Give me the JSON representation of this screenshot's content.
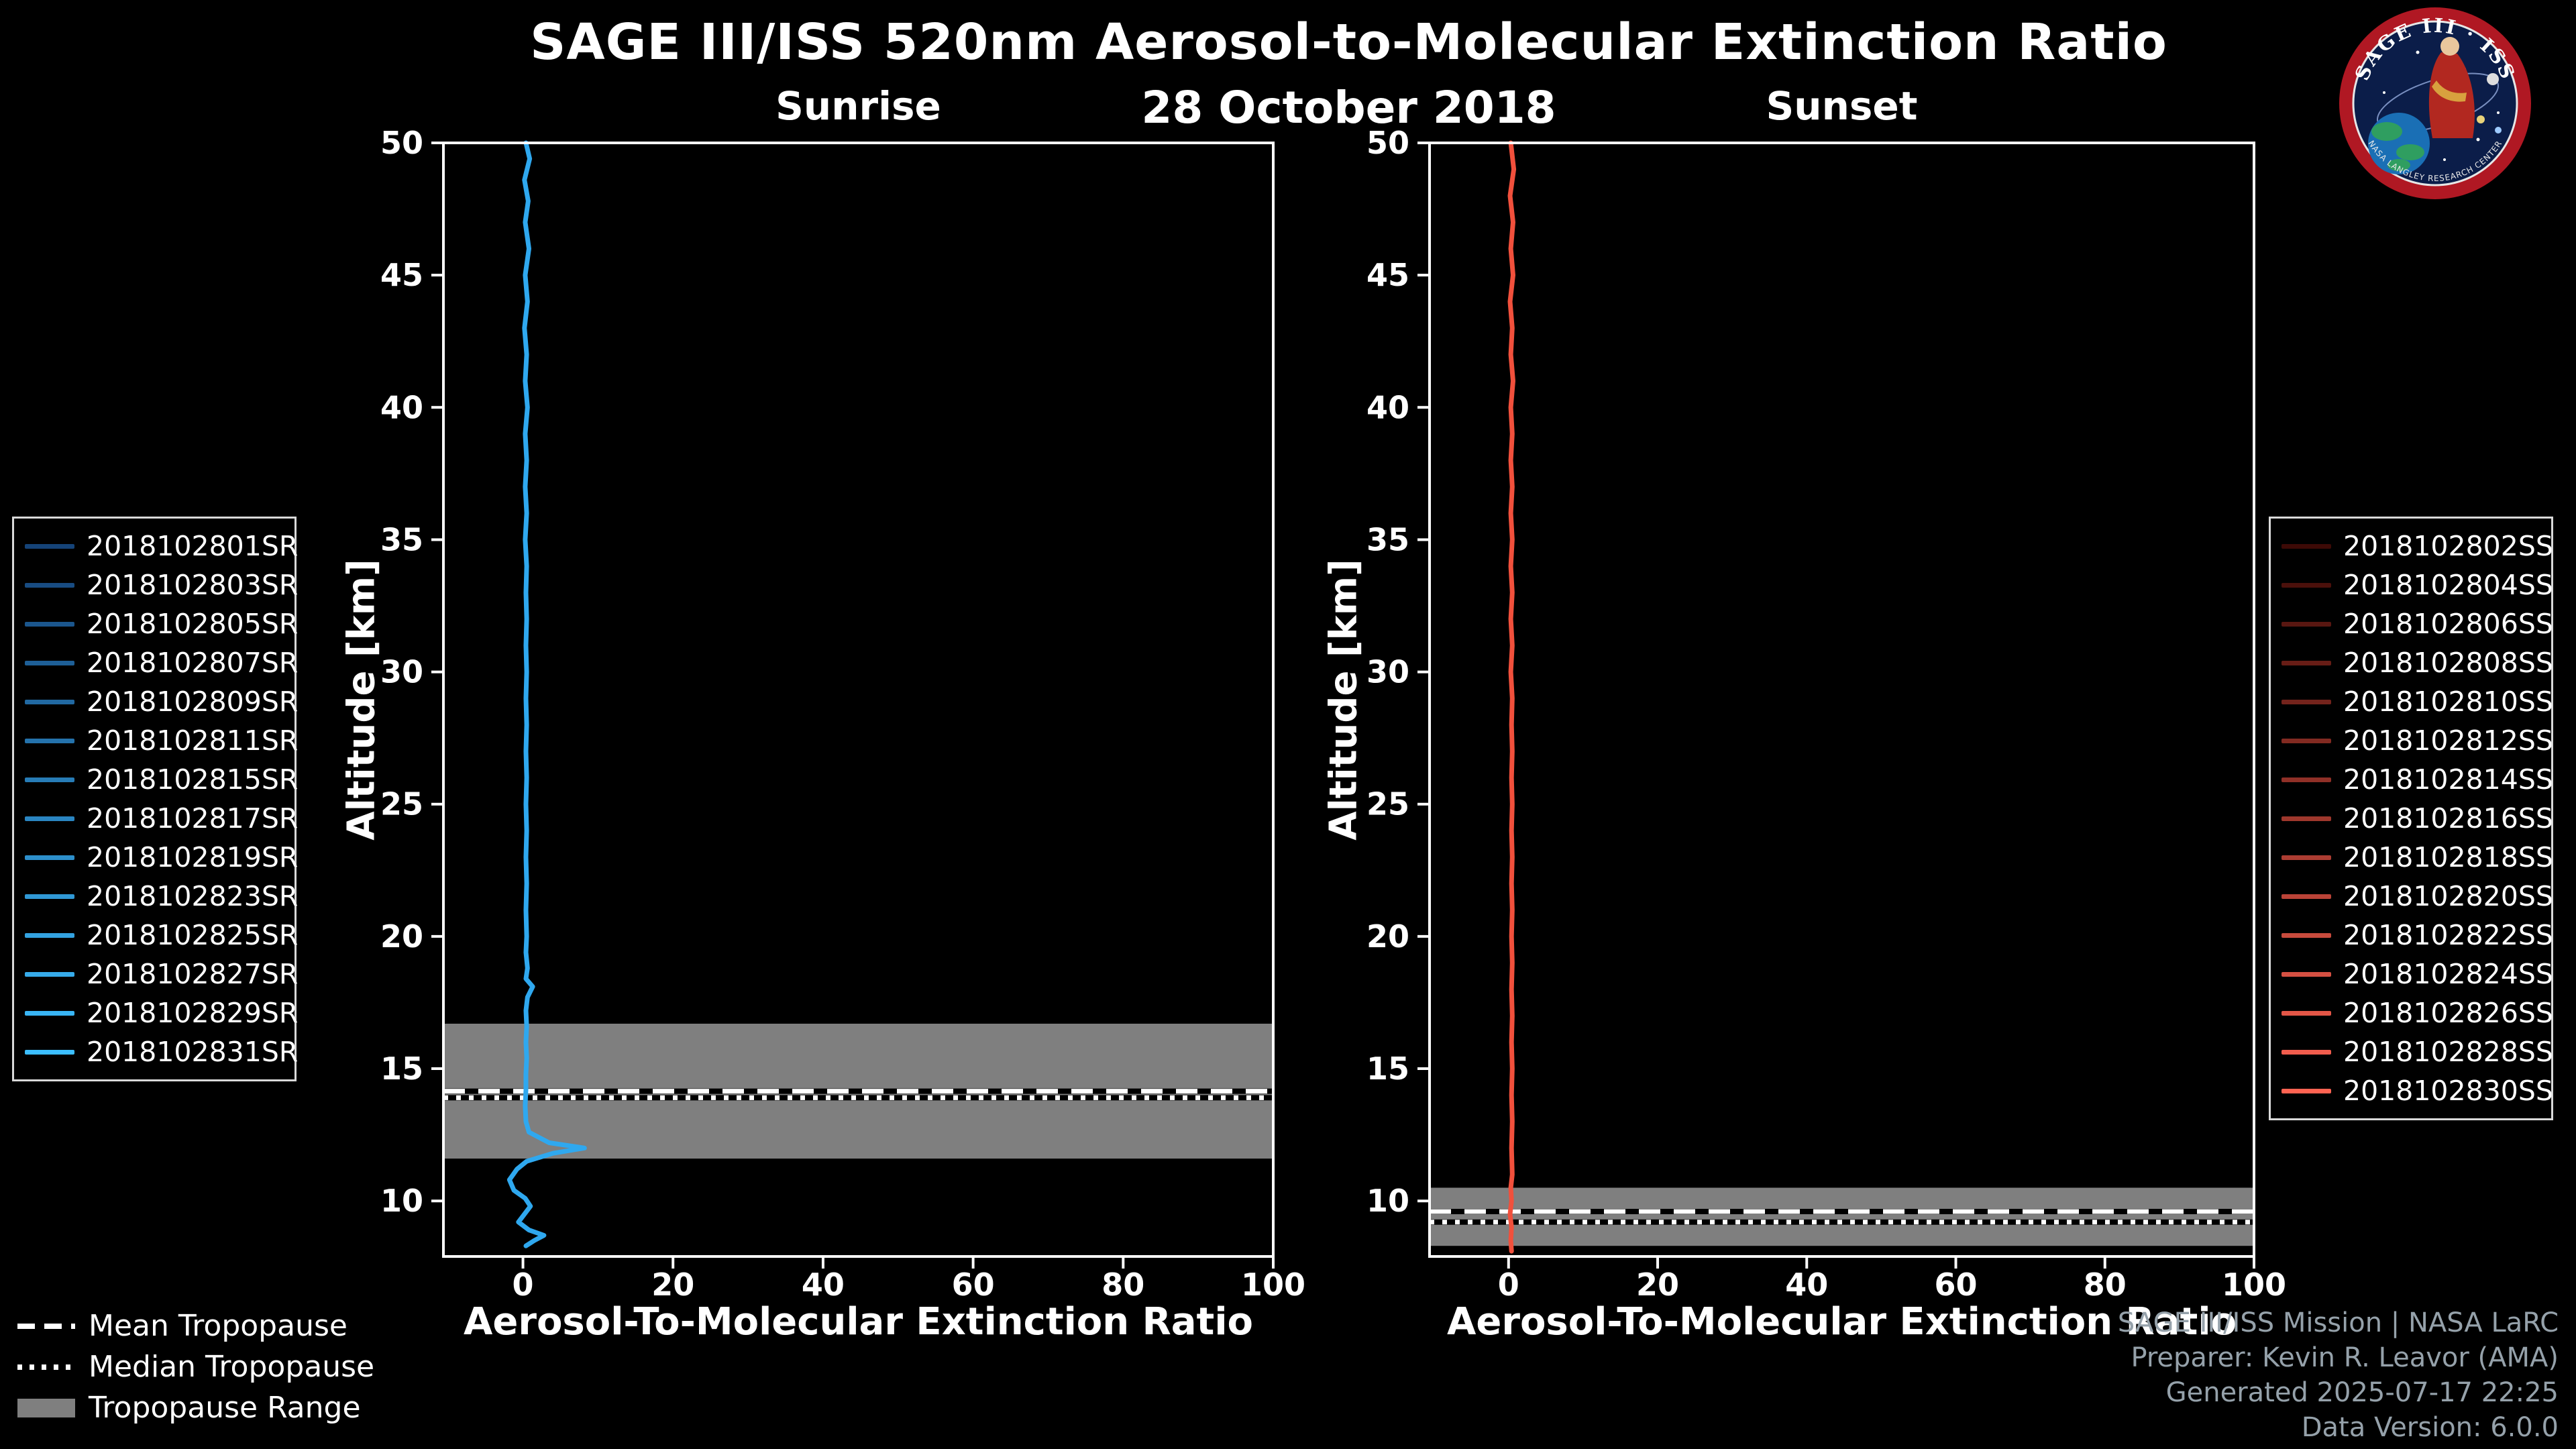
{
  "page": {
    "title": "SAGE III/ISS 520nm Aerosol-to-Molecular Extinction Ratio",
    "subtitle": "28 October 2018",
    "background_color": "#000000"
  },
  "style": {
    "tropopause_band_color": "#7f7f7f",
    "tropopause_line_color": "#ffffff",
    "tropopause_underlay_color": "#000000",
    "mean_dash": "32 20",
    "median_dash": "7 12",
    "axis_color": "#ffffff"
  },
  "logo": {
    "title": "SAGE III · ISS",
    "subtext": "NASA LANGLEY RESEARCH CENTER"
  },
  "tropopause_legend": {
    "items": [
      "Mean Tropopause",
      "Median Tropopause",
      "Tropopause Range"
    ]
  },
  "credits": [
    "SAGE III/ISS Mission | NASA LaRC",
    "Preparer: Kevin R. Leavor (AMA)",
    "Generated 2025-07-17 22:25",
    "Data Version: 6.0.0"
  ],
  "chart_data": [
    {
      "type": "line",
      "panel": "sunrise",
      "title": "Sunrise",
      "xlabel": "Aerosol-To-Molecular Extinction Ratio",
      "ylabel": "Altitude [km]",
      "xlim": [
        -10.6,
        100
      ],
      "ylim": [
        7.9,
        50
      ],
      "xticks": [
        0,
        20,
        40,
        60,
        80,
        100
      ],
      "yticks": [
        10,
        15,
        20,
        25,
        30,
        35,
        40,
        45,
        50
      ],
      "grid": false,
      "line_color": "#2FA8EF",
      "tropopause": {
        "range_km": [
          11.6,
          16.7
        ],
        "mean_km": 14.15,
        "median_km": 13.9
      },
      "legend": [
        {
          "label": "2018102801SR",
          "color": "#154378"
        },
        {
          "label": "2018102803SR",
          "color": "#184C82"
        },
        {
          "label": "2018102805SR",
          "color": "#1B568D"
        },
        {
          "label": "2018102807SR",
          "color": "#1E5F97"
        },
        {
          "label": "2018102809SR",
          "color": "#2169A2"
        },
        {
          "label": "2018102811SR",
          "color": "#2472AC"
        },
        {
          "label": "2018102815SR",
          "color": "#277CB6"
        },
        {
          "label": "2018102817SR",
          "color": "#2A85C1"
        },
        {
          "label": "2018102819SR",
          "color": "#2D8FCB"
        },
        {
          "label": "2018102823SR",
          "color": "#3098D5"
        },
        {
          "label": "2018102825SR",
          "color": "#33A2E0"
        },
        {
          "label": "2018102827SR",
          "color": "#36ABEA"
        },
        {
          "label": "2018102829SR",
          "color": "#39B5F5"
        },
        {
          "label": "2018102831SR",
          "color": "#3CBEFF"
        }
      ],
      "profile": [
        [
          0.4,
          50
        ],
        [
          0.9,
          49.4
        ],
        [
          0.2,
          48.6
        ],
        [
          0.7,
          47.8
        ],
        [
          0.3,
          47
        ],
        [
          0.8,
          46
        ],
        [
          0.3,
          45
        ],
        [
          0.6,
          44
        ],
        [
          0.2,
          43
        ],
        [
          0.5,
          42
        ],
        [
          0.3,
          41
        ],
        [
          0.6,
          40
        ],
        [
          0.3,
          39
        ],
        [
          0.5,
          38
        ],
        [
          0.3,
          37
        ],
        [
          0.5,
          36
        ],
        [
          0.3,
          35
        ],
        [
          0.5,
          34
        ],
        [
          0.4,
          33
        ],
        [
          0.5,
          32
        ],
        [
          0.4,
          31
        ],
        [
          0.5,
          30
        ],
        [
          0.4,
          29
        ],
        [
          0.5,
          28
        ],
        [
          0.4,
          27
        ],
        [
          0.5,
          26
        ],
        [
          0.4,
          25
        ],
        [
          0.5,
          24
        ],
        [
          0.4,
          23
        ],
        [
          0.5,
          22
        ],
        [
          0.4,
          21
        ],
        [
          0.5,
          20
        ],
        [
          0.4,
          19.4
        ],
        [
          0.6,
          18.8
        ],
        [
          0.4,
          18.4
        ],
        [
          1.3,
          18.1
        ],
        [
          0.6,
          17.7
        ],
        [
          0.4,
          17.2
        ],
        [
          0.5,
          16.6
        ],
        [
          0.4,
          16
        ],
        [
          0.5,
          15.4
        ],
        [
          0.4,
          14.8
        ],
        [
          0.4,
          14.2
        ],
        [
          0.3,
          13.6
        ],
        [
          0.4,
          13
        ],
        [
          0.8,
          12.6
        ],
        [
          3.5,
          12.2
        ],
        [
          8.2,
          12.0
        ],
        [
          4.0,
          11.8
        ],
        [
          0.5,
          11.5
        ],
        [
          -0.8,
          11.2
        ],
        [
          -1.8,
          10.8
        ],
        [
          -1.2,
          10.4
        ],
        [
          0.3,
          10.1
        ],
        [
          1.0,
          9.8
        ],
        [
          0.2,
          9.5
        ],
        [
          -0.6,
          9.2
        ],
        [
          0.8,
          8.9
        ],
        [
          2.8,
          8.7
        ],
        [
          1.5,
          8.5
        ],
        [
          0.4,
          8.3
        ]
      ]
    },
    {
      "type": "line",
      "panel": "sunset",
      "title": "Sunset",
      "xlabel": "Aerosol-To-Molecular Extinction Ratio",
      "ylabel": "Altitude [km]",
      "xlim": [
        -10.6,
        100
      ],
      "ylim": [
        7.9,
        50
      ],
      "xticks": [
        0,
        20,
        40,
        60,
        80,
        100
      ],
      "yticks": [
        10,
        15,
        20,
        25,
        30,
        35,
        40,
        45,
        50
      ],
      "grid": false,
      "line_color": "#F1503C",
      "tropopause": {
        "range_km": [
          8.3,
          10.5
        ],
        "mean_km": 9.6,
        "median_km": 9.2
      },
      "legend": [
        {
          "label": "2018102802SS",
          "color": "#3D0A06"
        },
        {
          "label": "2018102804SS",
          "color": "#4B100B"
        },
        {
          "label": "2018102806SS",
          "color": "#591711"
        },
        {
          "label": "2018102808SS",
          "color": "#671D16"
        },
        {
          "label": "2018102810SS",
          "color": "#74231C"
        },
        {
          "label": "2018102812SS",
          "color": "#822A21"
        },
        {
          "label": "2018102814SS",
          "color": "#903027"
        },
        {
          "label": "2018102816SS",
          "color": "#9E372C"
        },
        {
          "label": "2018102818SS",
          "color": "#AC3D32"
        },
        {
          "label": "2018102820SS",
          "color": "#BA4337"
        },
        {
          "label": "2018102822SS",
          "color": "#C74A3C"
        },
        {
          "label": "2018102824SS",
          "color": "#D55042"
        },
        {
          "label": "2018102826SS",
          "color": "#E35647"
        },
        {
          "label": "2018102828SS",
          "color": "#F15D4D"
        },
        {
          "label": "2018102830SS",
          "color": "#FF6352"
        }
      ],
      "profile": [
        [
          0.3,
          50
        ],
        [
          0.7,
          49
        ],
        [
          0.2,
          48
        ],
        [
          0.6,
          47
        ],
        [
          0.3,
          46
        ],
        [
          0.6,
          45
        ],
        [
          0.2,
          44
        ],
        [
          0.5,
          43
        ],
        [
          0.3,
          42
        ],
        [
          0.6,
          41
        ],
        [
          0.3,
          40
        ],
        [
          0.5,
          39
        ],
        [
          0.3,
          38
        ],
        [
          0.5,
          37
        ],
        [
          0.3,
          36
        ],
        [
          0.5,
          35
        ],
        [
          0.3,
          34
        ],
        [
          0.5,
          33
        ],
        [
          0.3,
          32
        ],
        [
          0.5,
          31
        ],
        [
          0.3,
          30
        ],
        [
          0.5,
          29
        ],
        [
          0.4,
          28
        ],
        [
          0.5,
          27
        ],
        [
          0.4,
          26
        ],
        [
          0.5,
          25
        ],
        [
          0.4,
          24
        ],
        [
          0.5,
          23
        ],
        [
          0.4,
          22
        ],
        [
          0.5,
          21
        ],
        [
          0.4,
          20
        ],
        [
          0.5,
          19
        ],
        [
          0.4,
          18
        ],
        [
          0.5,
          17
        ],
        [
          0.4,
          16
        ],
        [
          0.5,
          15
        ],
        [
          0.4,
          14
        ],
        [
          0.5,
          13
        ],
        [
          0.4,
          12
        ],
        [
          0.5,
          11
        ],
        [
          0.3,
          10.5
        ],
        [
          0.4,
          10
        ],
        [
          0.2,
          9.5
        ],
        [
          0.4,
          9
        ],
        [
          0.3,
          8.5
        ],
        [
          0.4,
          8.1
        ]
      ]
    }
  ]
}
